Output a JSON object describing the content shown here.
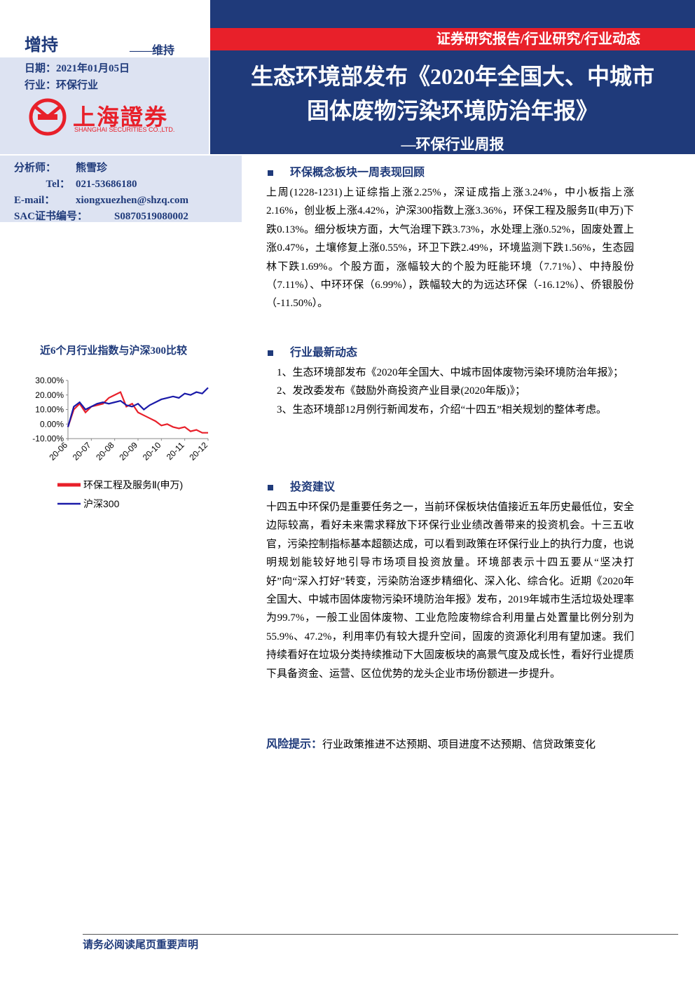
{
  "header": {
    "rating": "增持",
    "rating_prev": "——维持",
    "date": "日期：2021年01月05日",
    "industry": "行业：环保行业",
    "logo_cn": "上海證券",
    "logo_en": "SHANGHAI SECURITIES CO.,LTD.",
    "category": "证券研究报告/行业研究/行业动态",
    "title_lines": [
      "生态环境部发布《2020年全国大、中城市",
      "固体废物污染环境防治年报》"
    ],
    "subtitle": "—环保行业周报"
  },
  "analyst": [
    [
      "分析师：",
      "熊雪珍"
    ],
    [
      "Tel：",
      "021-53686180"
    ],
    [
      "E-mail：",
      "xiongxuezhen@shzq.com"
    ],
    [
      "SAC证书编号：",
      "S0870519080002"
    ]
  ],
  "chart": {
    "type": "line",
    "title": "近6个月行业指数与沪深300比较",
    "categories": [
      "20-06",
      null,
      null,
      null,
      "20-07",
      null,
      null,
      null,
      "20-08",
      null,
      null,
      null,
      "20-09",
      null,
      null,
      null,
      "20-10",
      null,
      null,
      null,
      "20-11",
      null,
      null,
      null,
      "20-12"
    ],
    "series": [
      {
        "name": "环保工程及服务Ⅱ(申万)",
        "color": "#e8202a",
        "values": [
          -2,
          10,
          14,
          8,
          12,
          13,
          14,
          18,
          20,
          22,
          12,
          14,
          8,
          6,
          4,
          2,
          -1,
          0,
          -2,
          -3,
          -2,
          -5,
          -4,
          -6,
          -6
        ]
      },
      {
        "name": "沪深300",
        "color": "#1a1aa8",
        "values": [
          -2,
          12,
          15,
          10,
          12,
          14,
          15,
          14,
          15,
          16,
          13,
          12,
          14,
          10,
          13,
          15,
          17,
          18,
          19,
          18,
          21,
          20,
          22,
          21,
          25
        ]
      }
    ],
    "ylim": [
      -10,
      30
    ],
    "yticks": [
      {
        "value": -10,
        "label": "-10.00%"
      },
      {
        "value": 0,
        "label": "0.00%"
      },
      {
        "value": 10,
        "label": "10.00%"
      },
      {
        "value": 20,
        "label": "20.00%"
      },
      {
        "value": 30,
        "label": "30.00%"
      }
    ]
  },
  "sections": [
    {
      "heading": "环保概念板块一周表现回顾",
      "paragraphs": [
        "上周(1228-1231)上证综指上涨2.25%，深证成指上涨3.24%，中小板指上涨2.16%，创业板上涨4.42%，沪深300指数上涨3.36%，环保工程及服务Ⅱ(申万)下跌0.13%。细分板块方面，大气治理下跌3.73%，水处理上涨0.52%，固废处置上涨0.47%，土壤修复上涨0.55%，环卫下跌2.49%，环境监测下跌1.56%，生态园林下跌1.69%。个股方面，涨幅较大的个股为旺能环境（7.71%）、中持股份（7.11%）、中环环保（6.99%），跌幅较大的为远达环保（-16.12%）、侨银股份（-11.50%）。"
      ]
    },
    {
      "heading": "行业最新动态",
      "paragraphs": [
        "1、生态环境部发布《2020年全国大、中城市固体废物污染环境防治年报》；",
        "2、发改委发布《鼓励外商投资产业目录(2020年版)》；",
        "3、生态环境部12月例行新闻发布，介绍“十四五”相关规划的整体考虑。"
      ]
    },
    {
      "heading": "投资建议",
      "paragraphs": [
        "十四五中环保仍是重要任务之一，当前环保板块估值接近五年历史最低位，安全边际较高，看好未来需求释放下环保行业业绩改善带来的投资机会。十三五收官，污染控制指标基本超额达成，可以看到政策在环保行业上的执行力度，也说明规划能较好地引导市场项目投资放量。环境部表示十四五要从“坚决打好”向“深入打好”转变，污染防治逐步精细化、深入化、综合化。近期《2020年全国大、中城市固体废物污染环境防治年报》发布，2019年城市生活垃圾处理率为99.7%，一般工业固体废物、工业危险废物综合利用量占处置量比例分别为55.9%、47.2%，利用率仍有较大提升空间，固废的资源化利用有望加速。我们持续看好在垃圾分类持续推动下大固废板块的高景气度及成长性，看好行业提质下具备资金、运营、区位优势的龙头企业市场份额进一步提升。"
      ]
    }
  ],
  "risk": {
    "label": "风险提示：",
    "text": "行业政策推进不达预期、项目进度不达预期、信贷政策变化"
  },
  "footer": "请务必阅读尾页重要声明"
}
